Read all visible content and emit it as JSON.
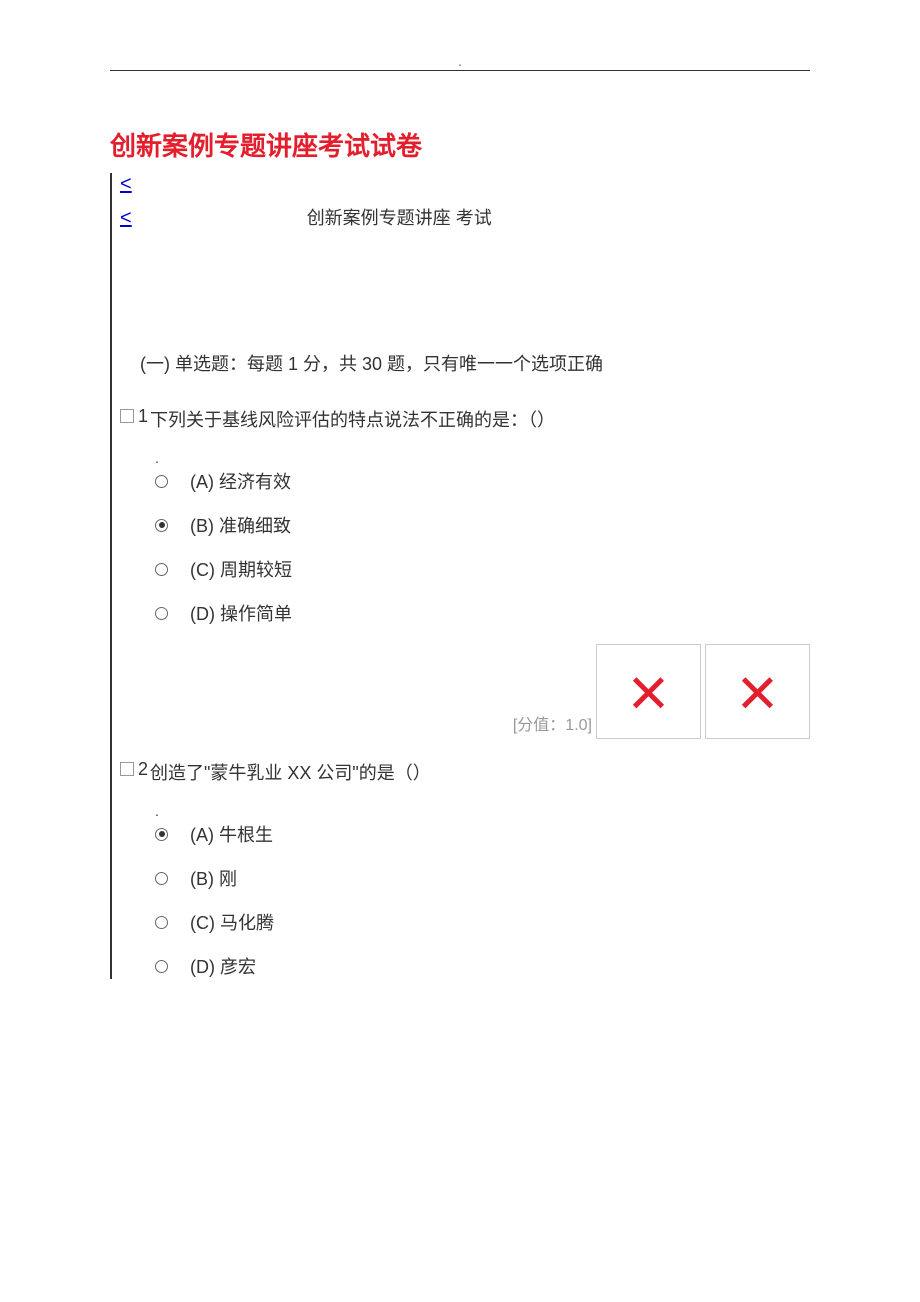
{
  "header_dot": ".",
  "main_title": "创新案例专题讲座考试试卷",
  "nav_symbol": "<",
  "subtitle": "创新案例专题讲座  考试",
  "section_header": "(一) 单选题：每题 1 分，共 30 题，只有唯一一个选项正确",
  "score_label": "[分值：1.0]",
  "colors": {
    "title": "#e41f2d",
    "x_mark": "#e41f2d",
    "link": "#0000cc",
    "text": "#333333",
    "muted": "#999999",
    "border": "#cccccc"
  },
  "questions": [
    {
      "num": "1",
      "text": "下列关于基线风险评估的特点说法不正确的是：（）",
      "has_dot": true,
      "options": [
        {
          "label": "(A) 经济有效",
          "selected": false
        },
        {
          "label": "(B) 准确细致",
          "selected": true
        },
        {
          "label": "(C) 周期较短",
          "selected": false
        },
        {
          "label": "(D) 操作简单",
          "selected": false
        }
      ],
      "show_score": true,
      "x_count": 2
    },
    {
      "num": "2",
      "text": "创造了\"蒙牛乳业 XX 公司\"的是（）",
      "has_dot": true,
      "options": [
        {
          "label": "(A) 牛根生",
          "selected": true
        },
        {
          "label": "(B) 刚",
          "selected": false
        },
        {
          "label": "(C) 马化腾",
          "selected": false
        },
        {
          "label": "(D) 彦宏",
          "selected": false
        }
      ],
      "show_score": false,
      "x_count": 0
    }
  ]
}
